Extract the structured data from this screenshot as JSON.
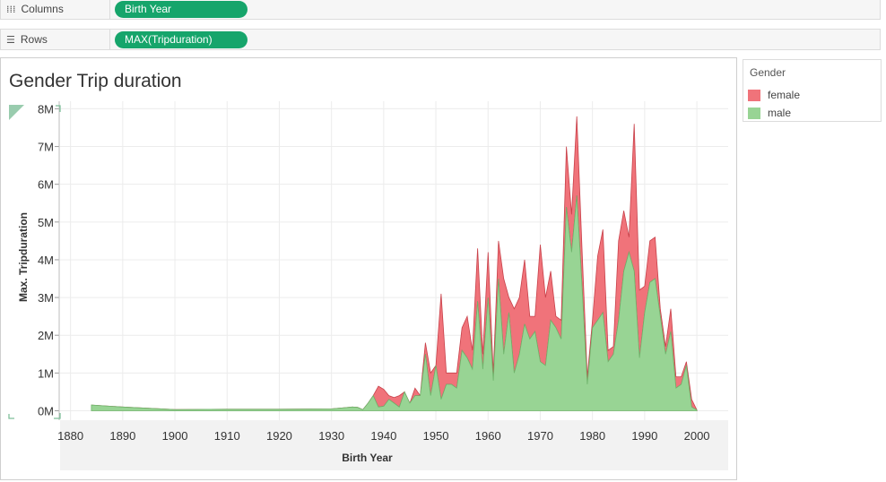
{
  "shelves": {
    "columns": {
      "icon": "columns-icon",
      "label": "Columns",
      "pill": "Birth Year"
    },
    "rows": {
      "icon": "rows-icon",
      "label": "Rows",
      "pill": "MAX(Tripduration)"
    }
  },
  "legend": {
    "title": "Gender",
    "items": [
      {
        "label": "female",
        "color": "#f0737a"
      },
      {
        "label": "male",
        "color": "#98d494"
      }
    ]
  },
  "colors": {
    "pill": "#16a56b",
    "female": "#f0737a",
    "female_line": "#c8414a",
    "male": "#98d494",
    "male_line": "#6fb46b"
  },
  "chart_data": {
    "type": "area",
    "title": "Gender Trip duration",
    "xlabel": "Birth Year",
    "ylabel": "Max. Tripduration",
    "xlim": [
      1878,
      2006
    ],
    "ylim": [
      -250000,
      8200000
    ],
    "x_ticks": [
      "1880",
      "1890",
      "1900",
      "1910",
      "1920",
      "1930",
      "1940",
      "1950",
      "1960",
      "1970",
      "1980",
      "1990",
      "2000"
    ],
    "y_ticks": [
      "0M",
      "1M",
      "2M",
      "3M",
      "4M",
      "5M",
      "6M",
      "7M",
      "8M"
    ],
    "grid": true,
    "legend_position": "right",
    "stacked": true,
    "series": [
      {
        "name": "male",
        "points": [
          [
            1884,
            150000
          ],
          [
            1890,
            100000
          ],
          [
            1900,
            30000
          ],
          [
            1910,
            40000
          ],
          [
            1920,
            40000
          ],
          [
            1930,
            50000
          ],
          [
            1934,
            100000
          ],
          [
            1935,
            90000
          ],
          [
            1936,
            30000
          ],
          [
            1937,
            200000
          ],
          [
            1938,
            400000
          ],
          [
            1939,
            100000
          ],
          [
            1940,
            120000
          ],
          [
            1941,
            300000
          ],
          [
            1942,
            200000
          ],
          [
            1943,
            100000
          ],
          [
            1944,
            500000
          ],
          [
            1945,
            200000
          ],
          [
            1946,
            400000
          ],
          [
            1947,
            400000
          ],
          [
            1948,
            1500000
          ],
          [
            1949,
            400000
          ],
          [
            1950,
            1200000
          ],
          [
            1951,
            300000
          ],
          [
            1952,
            700000
          ],
          [
            1953,
            700000
          ],
          [
            1954,
            600000
          ],
          [
            1955,
            1600000
          ],
          [
            1956,
            1400000
          ],
          [
            1957,
            1100000
          ],
          [
            1958,
            2900000
          ],
          [
            1959,
            1100000
          ],
          [
            1960,
            3000000
          ],
          [
            1961,
            800000
          ],
          [
            1962,
            3500000
          ],
          [
            1963,
            1500000
          ],
          [
            1964,
            2600000
          ],
          [
            1965,
            1000000
          ],
          [
            1966,
            1500000
          ],
          [
            1967,
            2300000
          ],
          [
            1968,
            1900000
          ],
          [
            1969,
            2100000
          ],
          [
            1970,
            1300000
          ],
          [
            1971,
            1200000
          ],
          [
            1972,
            2400000
          ],
          [
            1973,
            2200000
          ],
          [
            1974,
            1900000
          ],
          [
            1975,
            5400000
          ],
          [
            1976,
            4200000
          ],
          [
            1977,
            5700000
          ],
          [
            1978,
            3300000
          ],
          [
            1979,
            700000
          ],
          [
            1980,
            2200000
          ],
          [
            1981,
            2400000
          ],
          [
            1982,
            2600000
          ],
          [
            1983,
            1300000
          ],
          [
            1984,
            1500000
          ],
          [
            1985,
            2400000
          ],
          [
            1986,
            3700000
          ],
          [
            1987,
            4200000
          ],
          [
            1988,
            3700000
          ],
          [
            1989,
            1400000
          ],
          [
            1990,
            2600000
          ],
          [
            1991,
            3400000
          ],
          [
            1992,
            3500000
          ],
          [
            1993,
            2500000
          ],
          [
            1994,
            1500000
          ],
          [
            1995,
            2100000
          ],
          [
            1996,
            600000
          ],
          [
            1997,
            700000
          ],
          [
            1998,
            1200000
          ],
          [
            1999,
            100000
          ],
          [
            2000,
            20000
          ]
        ]
      },
      {
        "name": "female",
        "points": [
          [
            1936,
            0
          ],
          [
            1937,
            0
          ],
          [
            1938,
            0
          ],
          [
            1939,
            550000
          ],
          [
            1940,
            450000
          ],
          [
            1941,
            100000
          ],
          [
            1942,
            150000
          ],
          [
            1943,
            300000
          ],
          [
            1944,
            0
          ],
          [
            1945,
            0
          ],
          [
            1946,
            200000
          ],
          [
            1947,
            0
          ],
          [
            1948,
            300000
          ],
          [
            1949,
            600000
          ],
          [
            1950,
            0
          ],
          [
            1951,
            2800000
          ],
          [
            1952,
            300000
          ],
          [
            1953,
            300000
          ],
          [
            1954,
            400000
          ],
          [
            1955,
            600000
          ],
          [
            1956,
            1100000
          ],
          [
            1957,
            500000
          ],
          [
            1958,
            1400000
          ],
          [
            1959,
            400000
          ],
          [
            1960,
            1200000
          ],
          [
            1961,
            200000
          ],
          [
            1962,
            1000000
          ],
          [
            1963,
            2000000
          ],
          [
            1964,
            400000
          ],
          [
            1965,
            1700000
          ],
          [
            1966,
            1500000
          ],
          [
            1967,
            1700000
          ],
          [
            1968,
            600000
          ],
          [
            1969,
            400000
          ],
          [
            1970,
            3100000
          ],
          [
            1971,
            1800000
          ],
          [
            1972,
            1300000
          ],
          [
            1973,
            300000
          ],
          [
            1974,
            500000
          ],
          [
            1975,
            1600000
          ],
          [
            1976,
            1000000
          ],
          [
            1977,
            2100000
          ],
          [
            1978,
            1000000
          ],
          [
            1979,
            200000
          ],
          [
            1980,
            200000
          ],
          [
            1981,
            1700000
          ],
          [
            1982,
            2200000
          ],
          [
            1983,
            300000
          ],
          [
            1984,
            200000
          ],
          [
            1985,
            2100000
          ],
          [
            1986,
            1600000
          ],
          [
            1987,
            400000
          ],
          [
            1988,
            3900000
          ],
          [
            1989,
            1800000
          ],
          [
            1990,
            700000
          ],
          [
            1991,
            1100000
          ],
          [
            1992,
            1100000
          ],
          [
            1993,
            200000
          ],
          [
            1994,
            200000
          ],
          [
            1995,
            600000
          ],
          [
            1996,
            300000
          ],
          [
            1997,
            200000
          ],
          [
            1998,
            100000
          ],
          [
            1999,
            200000
          ],
          [
            2000,
            0
          ]
        ]
      }
    ]
  }
}
